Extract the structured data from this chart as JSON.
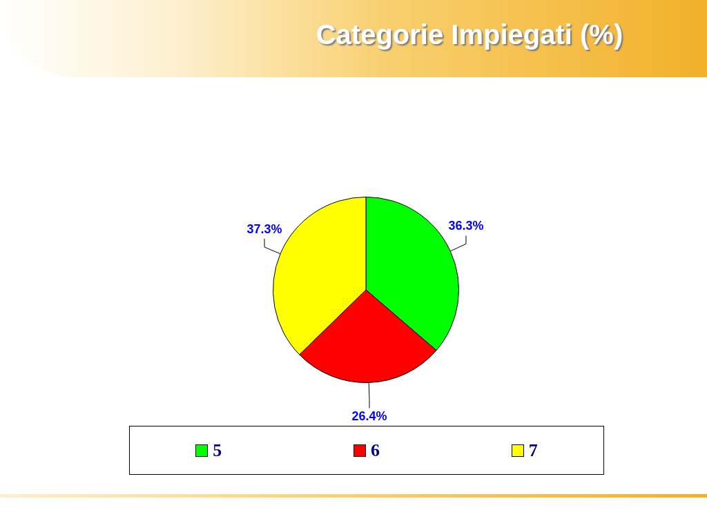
{
  "chart_data": {
    "type": "pie",
    "title": "Categorie Impiegati (%)",
    "categories": [
      "5",
      "6",
      "7"
    ],
    "values": [
      36.3,
      26.4,
      37.3
    ],
    "colors": [
      "#00ff00",
      "#ff0000",
      "#ffff00"
    ],
    "value_labels": [
      "36.3%",
      "26.4%",
      "37.3%"
    ],
    "legend": "bottom"
  }
}
